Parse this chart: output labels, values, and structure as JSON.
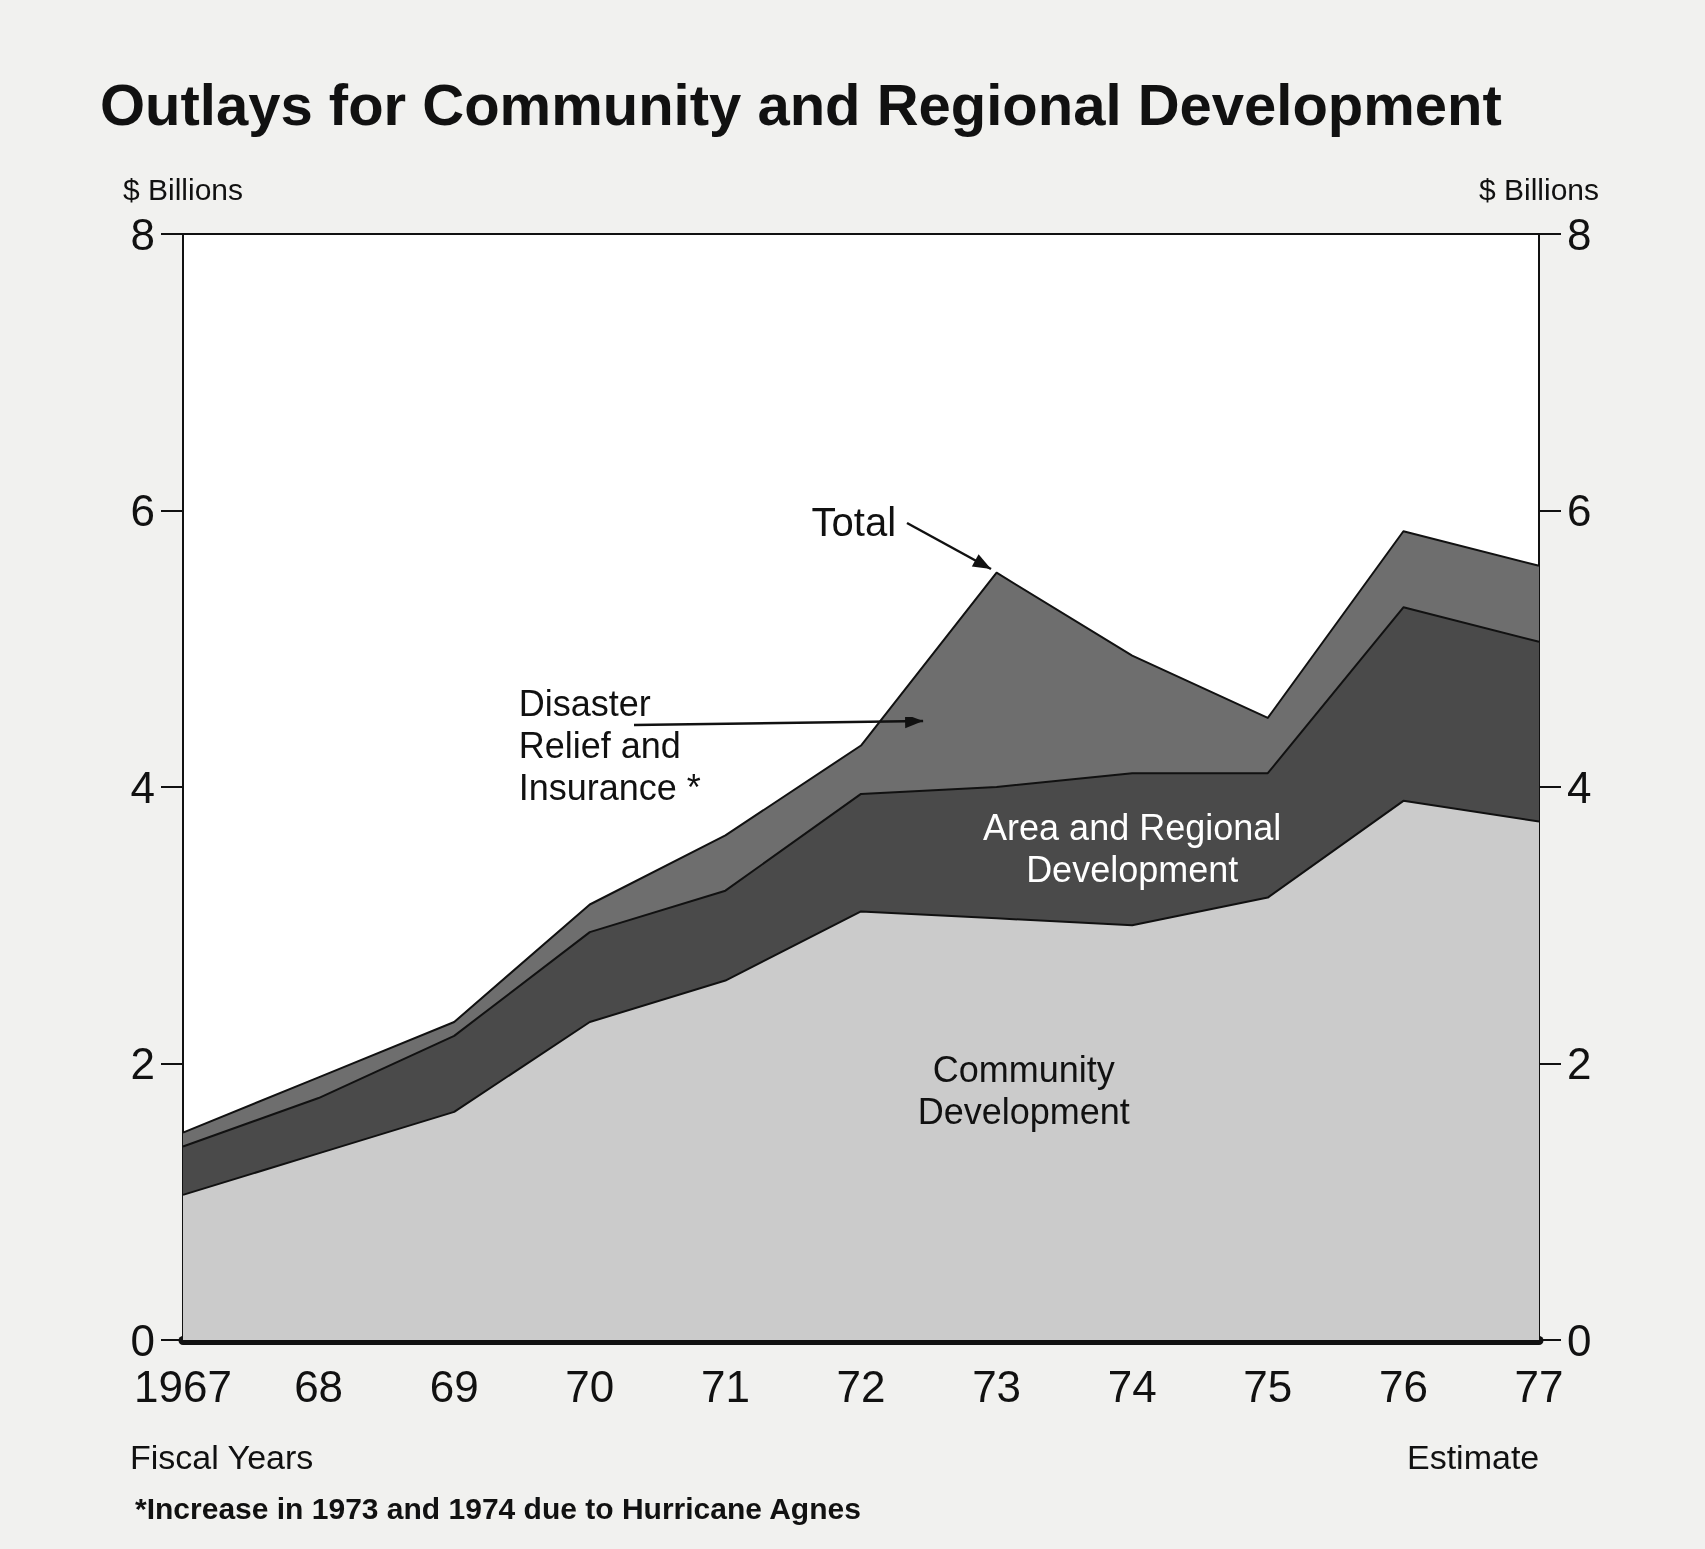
{
  "chart_data": {
    "type": "area",
    "title": "Outlays for Community and Regional Development",
    "xlabel": "Fiscal Years",
    "ylabel": "$ Billions",
    "y2label": "$ Billions",
    "categories": [
      "1967",
      "68",
      "69",
      "70",
      "71",
      "72",
      "73",
      "74",
      "75",
      "76",
      "77"
    ],
    "stacked": true,
    "grid": false,
    "legend": false,
    "ylim": [
      0,
      8
    ],
    "yticks": [
      0,
      2,
      4,
      6,
      8
    ],
    "y2lim": [
      0,
      8
    ],
    "y2ticks": [
      0,
      2,
      4,
      6,
      8
    ],
    "series": [
      {
        "name": "Community Development",
        "color": "#cbcbcb",
        "values": [
          1.05,
          1.35,
          1.65,
          2.3,
          2.6,
          3.1,
          3.05,
          3.0,
          3.2,
          3.9,
          3.75
        ]
      },
      {
        "name": "Area and Regional Development",
        "color": "#4a4a4a",
        "values": [
          0.35,
          0.4,
          0.55,
          0.65,
          0.65,
          0.85,
          0.95,
          1.1,
          0.9,
          1.4,
          1.3
        ]
      },
      {
        "name": "Disaster Relief and Insurance *",
        "color": "#6e6e6e",
        "values": [
          0.1,
          0.15,
          0.1,
          0.2,
          0.4,
          0.35,
          1.55,
          0.85,
          0.4,
          0.55,
          0.55
        ]
      }
    ],
    "annotations": [
      {
        "text": "Total",
        "x": "73",
        "y": 5.55
      },
      "Estimate",
      "*Increase in 1973 and 1974 due to Hurricane Agnes"
    ]
  }
}
